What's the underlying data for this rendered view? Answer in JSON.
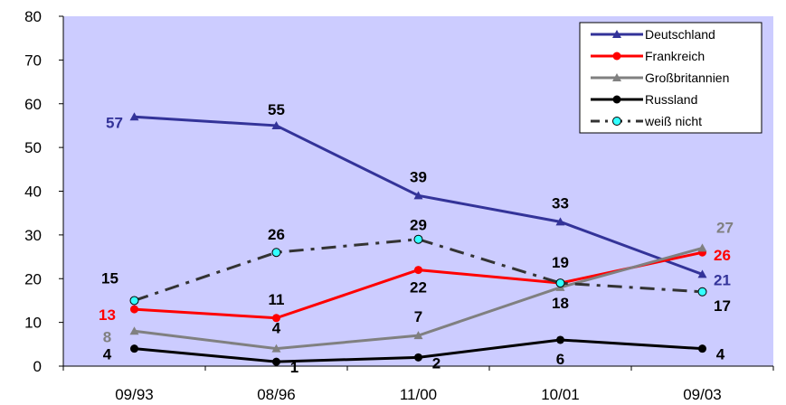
{
  "chart_data": {
    "type": "line",
    "categories": [
      "09/93",
      "08/96",
      "11/00",
      "10/01",
      "09/03"
    ],
    "ylim": [
      0,
      80
    ],
    "yticks": [
      0,
      10,
      20,
      30,
      40,
      50,
      60,
      70,
      80
    ],
    "grid": false,
    "legend_position": "top-right",
    "plot_background": "#ccccff",
    "series": [
      {
        "name": "Deutschland",
        "values": [
          57,
          55,
          39,
          33,
          21
        ],
        "color": "#333399",
        "marker": "triangle",
        "dash": "solid",
        "labels": [
          "57",
          "55",
          "39",
          "33",
          "21"
        ],
        "label_colors": [
          "#333399",
          "#000000",
          "#000000",
          "#000000",
          "#333399"
        ]
      },
      {
        "name": "Frankreich",
        "values": [
          13,
          11,
          22,
          19,
          26
        ],
        "color": "#ff0000",
        "marker": "circle",
        "dash": "solid",
        "labels": [
          "13",
          "11",
          "22",
          "19",
          "26"
        ],
        "label_colors": [
          "#ff0000",
          "#000000",
          "#000000",
          "#000000",
          "#ff0000"
        ]
      },
      {
        "name": "Großbritannien",
        "values": [
          8,
          4,
          7,
          18,
          27
        ],
        "color": "#808080",
        "marker": "triangle",
        "dash": "solid",
        "labels": [
          "8",
          "4",
          "7",
          "18",
          "27"
        ],
        "label_colors": [
          "#808080",
          "#000000",
          "#000000",
          "#000000",
          "#808080"
        ]
      },
      {
        "name": "Russland",
        "values": [
          4,
          1,
          2,
          6,
          4
        ],
        "color": "#000000",
        "marker": "circle",
        "dash": "solid",
        "labels": [
          "4",
          "1",
          "2",
          "6",
          "4"
        ],
        "label_colors": [
          "#000000",
          "#000000",
          "#000000",
          "#000000",
          "#000000"
        ]
      },
      {
        "name": "weiß nicht",
        "values": [
          15,
          26,
          29,
          19,
          17
        ],
        "color": "#333333",
        "marker": "circle-cyan",
        "dash": "dashdot",
        "labels": [
          "15",
          "26",
          "29",
          "",
          "17"
        ],
        "label_colors": [
          "#000000",
          "#000000",
          "#000000",
          "#000000",
          "#000000"
        ]
      }
    ]
  }
}
